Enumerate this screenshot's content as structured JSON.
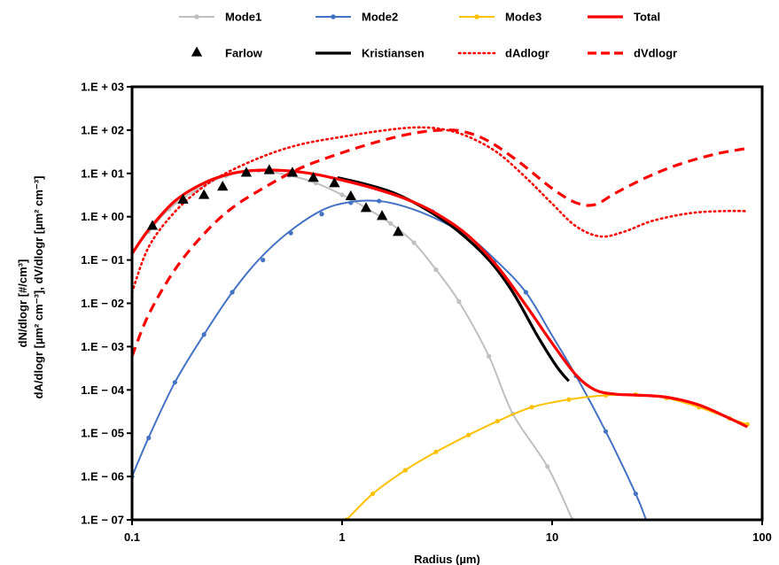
{
  "chart_data": {
    "type": "line",
    "title": "",
    "xlabel": "Radius (µm)",
    "ylabel_line1": "dN/dlogr [#/cm³]",
    "ylabel_line2": "dA/dlogr [µm² cm⁻³], dV/dlogr [µm² cm⁻³]",
    "xscale": "log",
    "yscale": "log",
    "xlim": [
      0.1,
      100
    ],
    "ylim": [
      1e-07,
      1000
    ],
    "grid": false,
    "legend_position": "top",
    "x_tick_labels": [
      "0.1",
      "1",
      "10",
      "100"
    ],
    "y_tick_labels": [
      "1.E − 07",
      "1.E − 06",
      "1.E − 05",
      "1.E − 04",
      "1.E − 03",
      "1.E − 02",
      "1.E − 01",
      "1.E + 00",
      "1.E + 01",
      "1.E + 02",
      "1.E + 03"
    ],
    "series": [
      {
        "name": "Mode1",
        "color": "#bfbfbf",
        "style": "line-markers",
        "x": [
          0.1,
          0.12,
          0.15,
          0.2,
          0.28,
          0.4,
          0.56,
          0.75,
          1.0,
          1.3,
          1.7,
          2.2,
          2.8,
          3.6,
          5.0,
          6.5,
          9.5,
          12.5
        ],
        "y": [
          0.15,
          0.45,
          1.5,
          4,
          8.8,
          11.5,
          9,
          6,
          3.2,
          1.6,
          0.7,
          0.25,
          0.06,
          0.011,
          0.0006,
          2.8e-05,
          1.7e-06,
          1e-07
        ]
      },
      {
        "name": "Mode2",
        "color": "#4472c4",
        "style": "line-markers",
        "x": [
          0.1,
          0.12,
          0.16,
          0.22,
          0.3,
          0.4,
          0.55,
          0.8,
          1.1,
          1.5,
          2.0,
          2.8,
          4.0,
          5.5,
          7.5,
          10,
          13,
          18,
          25,
          28
        ],
        "y": [
          1e-06,
          8e-06,
          0.00015,
          0.0019,
          0.018,
          0.1,
          0.42,
          1.4,
          2.2,
          2.3,
          1.7,
          0.9,
          0.35,
          0.09,
          0.018,
          0.0018,
          0.00021,
          1.1e-05,
          4e-07,
          1e-07
        ],
        "marker_x": [
          0.1,
          0.12,
          0.16,
          0.22,
          0.3,
          0.42,
          0.57,
          0.8,
          1.1,
          1.5,
          2.7,
          5.3,
          7.5,
          13,
          18,
          25
        ],
        "marker_y": [
          1e-06,
          7.8e-06,
          0.00015,
          0.0019,
          0.018,
          0.1,
          0.42,
          1.15,
          2.1,
          2.3,
          1.3,
          0.09,
          0.018,
          0.00021,
          1.1e-05,
          4e-07
        ]
      },
      {
        "name": "Mode3",
        "color": "#ffc000",
        "style": "line-markers",
        "x": [
          1.05,
          1.4,
          2.0,
          2.8,
          4.0,
          5.5,
          8.0,
          12,
          18,
          25,
          35,
          50,
          70,
          85
        ],
        "y": [
          1e-07,
          4e-07,
          1.4e-06,
          3.7e-06,
          9.1e-06,
          1.9e-05,
          4e-05,
          6e-05,
          7.5e-05,
          7.8e-05,
          6.5e-05,
          4e-05,
          2.2e-05,
          1.6e-05
        ]
      },
      {
        "name": "Total",
        "color": "#ff0000",
        "style": "line",
        "x": [
          0.1,
          0.12,
          0.16,
          0.22,
          0.3,
          0.4,
          0.55,
          0.75,
          1.0,
          1.4,
          2.0,
          2.8,
          4.0,
          5.5,
          7.5,
          10,
          13,
          16,
          20,
          25,
          35,
          50,
          70,
          85
        ],
        "y": [
          0.14,
          0.5,
          2.3,
          6.0,
          10,
          11.8,
          11.5,
          9.5,
          7.0,
          4.6,
          2.6,
          1.2,
          0.36,
          0.07,
          0.009,
          0.0012,
          0.00022,
          0.0001,
          8e-05,
          7.6e-05,
          6.8e-05,
          4.5e-05,
          2.2e-05,
          1.4e-05
        ]
      },
      {
        "name": "Farlow",
        "color": "#000000",
        "style": "markers-triangle",
        "x": [
          0.125,
          0.175,
          0.22,
          0.27,
          0.35,
          0.45,
          0.58,
          0.73,
          0.92,
          1.1,
          1.3,
          1.55,
          1.85
        ],
        "y": [
          0.62,
          2.5,
          3.2,
          5.0,
          10.5,
          12,
          10.5,
          8.0,
          6.0,
          3.0,
          1.6,
          1.05,
          0.45
        ]
      },
      {
        "name": "Kristiansen",
        "color": "#000000",
        "style": "line",
        "x": [
          0.95,
          1.3,
          1.8,
          2.5,
          3.5,
          5.0,
          6.5,
          8.5,
          10.5,
          12
        ],
        "y": [
          8.0,
          5.6,
          3.4,
          1.5,
          0.5,
          0.1,
          0.018,
          0.0018,
          0.00035,
          0.00016
        ]
      },
      {
        "name": "dAdlogr",
        "color": "#ff0000",
        "style": "dotted",
        "x": [
          0.1,
          0.12,
          0.16,
          0.22,
          0.3,
          0.45,
          0.65,
          1.0,
          1.5,
          2.2,
          3.0,
          4.0,
          5.5,
          7.5,
          10,
          13,
          17,
          22,
          30,
          45,
          65,
          85
        ],
        "y": [
          0.018,
          0.2,
          1.3,
          5.0,
          12,
          28,
          48,
          70,
          95,
          115,
          105,
          70,
          30,
          8,
          2,
          0.6,
          0.35,
          0.45,
          0.8,
          1.2,
          1.35,
          1.35
        ]
      },
      {
        "name": "dVdlogr",
        "color": "#ff0000",
        "style": "dashed",
        "x": [
          0.1,
          0.12,
          0.16,
          0.22,
          0.3,
          0.45,
          0.65,
          1.0,
          1.5,
          2.2,
          3.0,
          3.8,
          5.0,
          7.0,
          10,
          13,
          16,
          20,
          28,
          40,
          60,
          85
        ],
        "y": [
          0.0006,
          0.0055,
          0.06,
          0.4,
          1.6,
          5.5,
          14,
          30,
          55,
          85,
          100,
          92,
          55,
          18,
          4.5,
          2.1,
          1.9,
          3.5,
          8,
          16,
          28,
          38
        ]
      }
    ]
  },
  "legend": [
    {
      "label": "Mode1",
      "color": "#bfbfbf",
      "symbol": "line-marker"
    },
    {
      "label": "Mode2",
      "color": "#4472c4",
      "symbol": "line-marker"
    },
    {
      "label": "Mode3",
      "color": "#ffc000",
      "symbol": "line-marker"
    },
    {
      "label": "Total",
      "color": "#ff0000",
      "symbol": "thick-line"
    },
    {
      "label": "Farlow",
      "color": "#000000",
      "symbol": "triangle"
    },
    {
      "label": "Kristiansen",
      "color": "#000000",
      "symbol": "thick-line"
    },
    {
      "label": "dAdlogr",
      "color": "#ff0000",
      "symbol": "dotted-line"
    },
    {
      "label": "dVdlogr",
      "color": "#ff0000",
      "symbol": "dashed-line"
    }
  ]
}
